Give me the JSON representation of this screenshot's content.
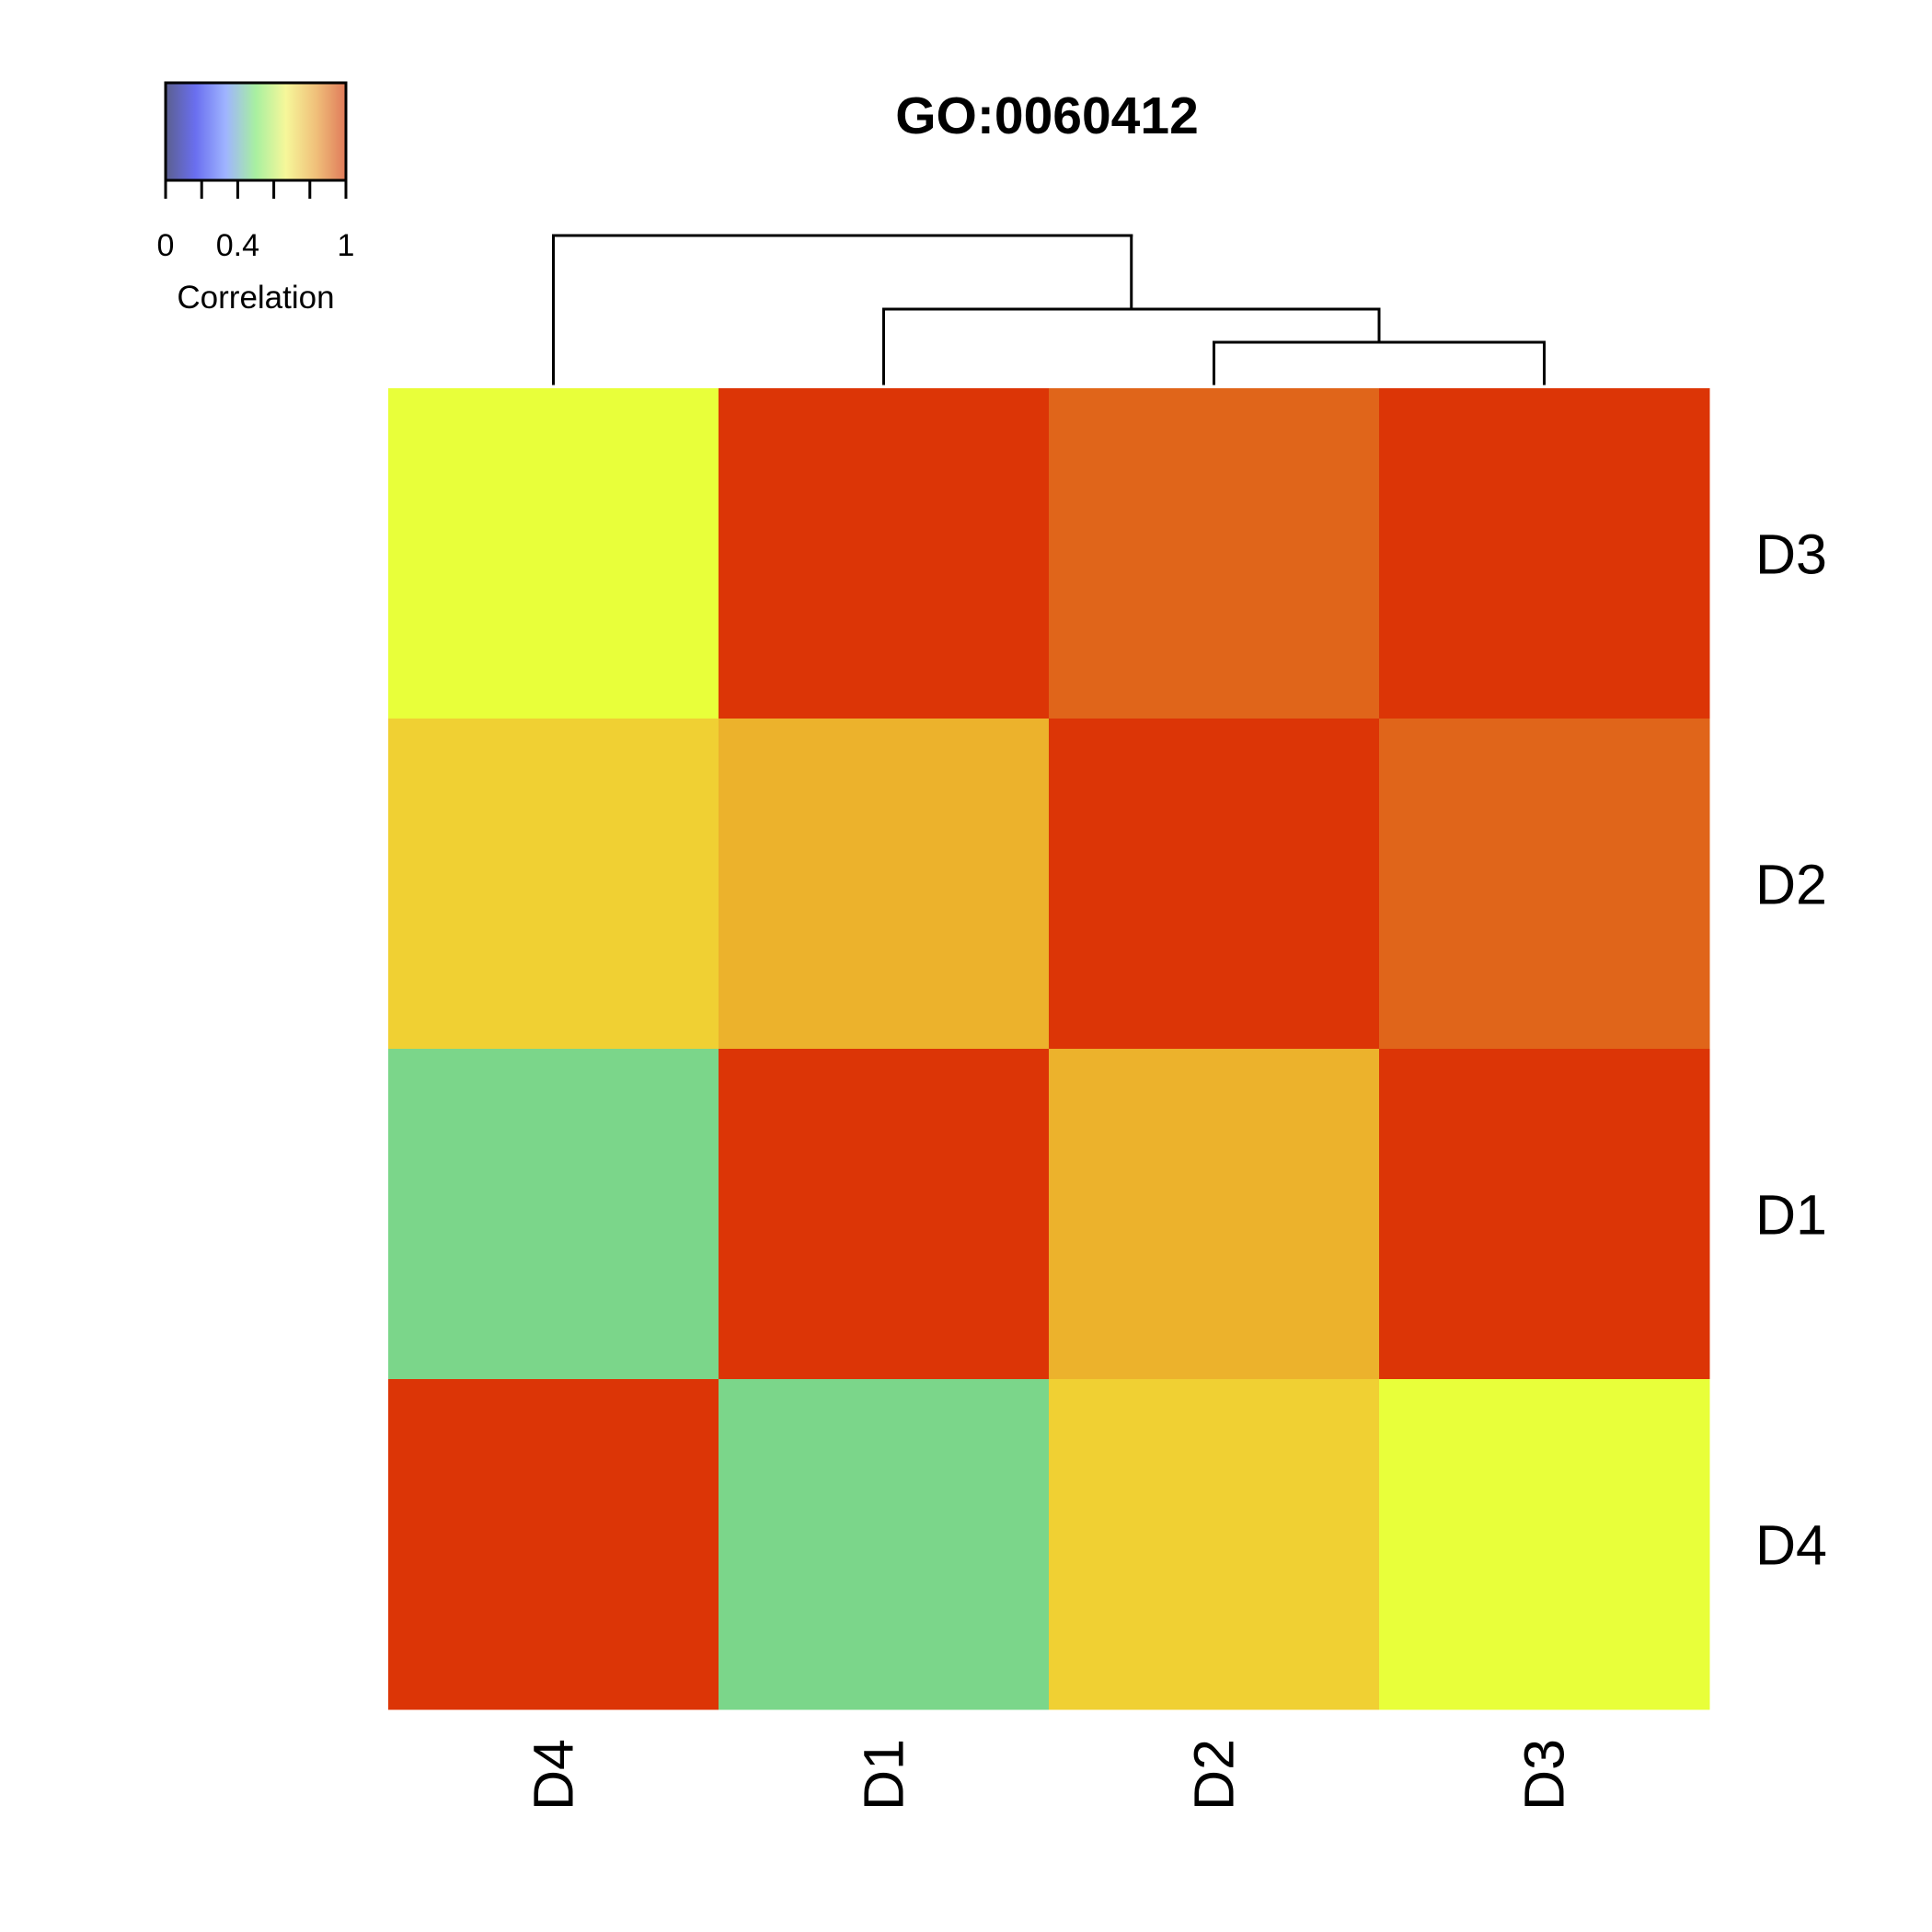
{
  "chart_data": {
    "type": "heatmap",
    "title": "GO:0060412",
    "columns": [
      "D4",
      "D1",
      "D2",
      "D3"
    ],
    "rows": [
      "D3",
      "D2",
      "D1",
      "D4"
    ],
    "values": [
      [
        0.7,
        1.0,
        0.92,
        1.0
      ],
      [
        0.77,
        0.81,
        1.0,
        0.92
      ],
      [
        0.5,
        1.0,
        0.81,
        1.0
      ],
      [
        1.0,
        0.5,
        0.77,
        0.7
      ]
    ],
    "legend": {
      "title": "Correlation",
      "tick_labels": [
        "0",
        "0.4",
        "1"
      ],
      "tick_values": [
        0,
        0.4,
        1
      ],
      "range": [
        0,
        1
      ],
      "position": "top-left",
      "colors": [
        "#5b5f8f",
        "#6a6ff0",
        "#9fb4ff",
        "#a8f0a0",
        "#f6f79a",
        "#f0c07a",
        "#e07a5a"
      ]
    },
    "cell_colors": [
      [
        "#e8ff3a",
        "#dc3506",
        "#e0651a",
        "#dc3506"
      ],
      [
        "#f0d033",
        "#ecb22c",
        "#dc3506",
        "#e0651a"
      ],
      [
        "#7bd68a",
        "#dc3506",
        "#ecb22c",
        "#dc3506"
      ],
      [
        "#dc3506",
        "#7bd68a",
        "#f0d033",
        "#e8ff3a"
      ]
    ],
    "dendrogram": "(D4,(D1,(D2,D3)))"
  }
}
